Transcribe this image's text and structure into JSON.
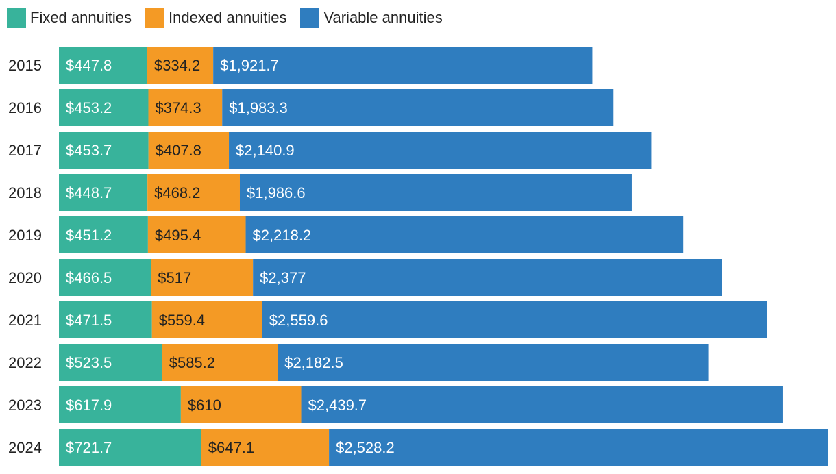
{
  "legend": {
    "items": [
      {
        "label": "Fixed annuities",
        "color": "#38b39b"
      },
      {
        "label": "Indexed annuities",
        "color": "#f49a25"
      },
      {
        "label": "Variable annuities",
        "color": "#2f7dbf"
      }
    ]
  },
  "chart_data": {
    "type": "bar",
    "orientation": "horizontal",
    "stacked": true,
    "grid": false,
    "legend_position": "top-left",
    "label_prefix": "$",
    "categories": [
      "2015",
      "2016",
      "2017",
      "2018",
      "2019",
      "2020",
      "2021",
      "2022",
      "2023",
      "2024"
    ],
    "series": [
      {
        "name": "Fixed annuities",
        "color": "#38b39b",
        "label_color": "#ffffff",
        "values": [
          447.8,
          453.2,
          453.7,
          448.7,
          451.2,
          466.5,
          471.5,
          523.5,
          617.9,
          721.7
        ],
        "labels": [
          "$447.8",
          "$453.2",
          "$453.7",
          "$448.7",
          "$451.2",
          "$466.5",
          "$471.5",
          "$523.5",
          "$617.9",
          "$721.7"
        ]
      },
      {
        "name": "Indexed annuities",
        "color": "#f49a25",
        "label_color": "#222222",
        "values": [
          334.2,
          374.3,
          407.8,
          468.2,
          495.4,
          517,
          559.4,
          585.2,
          610,
          647.1
        ],
        "labels": [
          "$334.2",
          "$374.3",
          "$407.8",
          "$468.2",
          "$495.4",
          "$517",
          "$559.4",
          "$585.2",
          "$610",
          "$647.1"
        ]
      },
      {
        "name": "Variable annuities",
        "color": "#2f7dbf",
        "label_color": "#ffffff",
        "values": [
          1921.7,
          1983.3,
          2140.9,
          1986.6,
          2218.2,
          2377,
          2559.6,
          2182.5,
          2439.7,
          2528.2
        ],
        "labels": [
          "$1,921.7",
          "$1,983.3",
          "$2,140.9",
          "$1,986.6",
          "$2,218.2",
          "$2,377",
          "$2,559.6",
          "$2,182.5",
          "$2,439.7",
          "$2,528.2"
        ]
      }
    ]
  }
}
